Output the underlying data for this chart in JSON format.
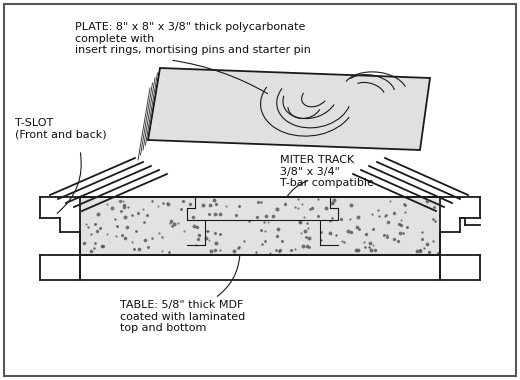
{
  "bg": "#ffffff",
  "border_color": "#555555",
  "lc": "#1a1a1a",
  "lc_thin": "#333333",
  "lc_gray": "#888888",
  "fill_white": "#ffffff",
  "fill_mdf": "#e8e8e8",
  "fill_plate": "#e0e0e0",
  "annotations": {
    "plate": "PLATE: 8\" x 8\" x 3/8\" thick polycarbonate\ncomplete with\ninsert rings, mortising pins and starter pin",
    "tslot": "T-SLOT\n(Front and back)",
    "miter": "MITER TRACK\n3/8\" x 3/4\"\nT-bar compatible",
    "table": "TABLE: 5/8\" thick MDF\ncoated with laminated\ntop and bottom"
  },
  "fontsize": 8.0
}
